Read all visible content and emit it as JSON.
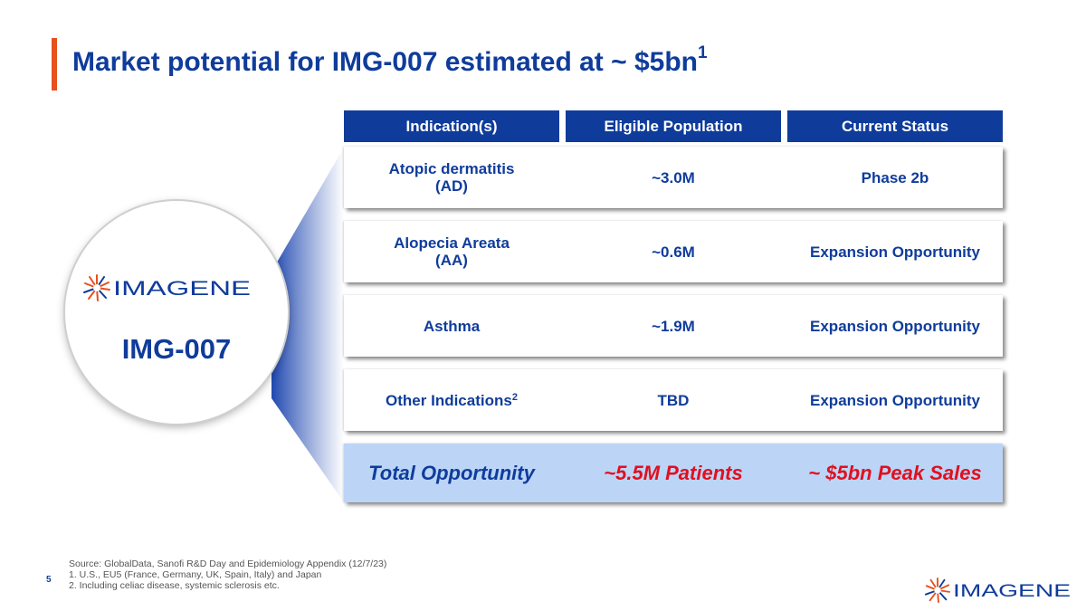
{
  "slide": {
    "title": "Market potential for IMG-007 estimated at ~ $5bn",
    "title_superscript": "1",
    "page_number": "5"
  },
  "hub": {
    "logo_text": "IMAGENE",
    "product_name": "IMG-007"
  },
  "table": {
    "headers": [
      "Indication(s)",
      "Eligible Population",
      "Current Status"
    ],
    "rows": [
      {
        "indication": "Atopic dermatitis\n(AD)",
        "population": "~3.0M",
        "status": "Phase 2b"
      },
      {
        "indication": "Alopecia Areata\n(AA)",
        "population": "~0.6M",
        "status": "Expansion Opportunity"
      },
      {
        "indication": "Asthma",
        "population": "~1.9M",
        "status": "Expansion Opportunity"
      },
      {
        "indication": "Other Indications",
        "indication_superscript": "2",
        "population": "TBD",
        "status": "Expansion Opportunity"
      }
    ],
    "total": {
      "label": "Total Opportunity",
      "population": "~5.5M Patients",
      "sales": "~ $5bn Peak Sales"
    }
  },
  "footnotes": {
    "source": "Source: GlobalData, Sanofi R&D Day and Epidemiology Appendix (12/7/23)",
    "note1": "1. U.S., EU5 (France, Germany, UK, Spain, Italy) and Japan",
    "note2": "2. Including celiac disease, systemic sclerosis etc."
  },
  "colors": {
    "brand_blue": "#0f3c9b",
    "accent_orange": "#e8501c",
    "highlight_red": "#e0101f",
    "total_row_bg": "#bcd5f7"
  },
  "icons": {
    "logo_mark": "starburst-logo-icon"
  }
}
